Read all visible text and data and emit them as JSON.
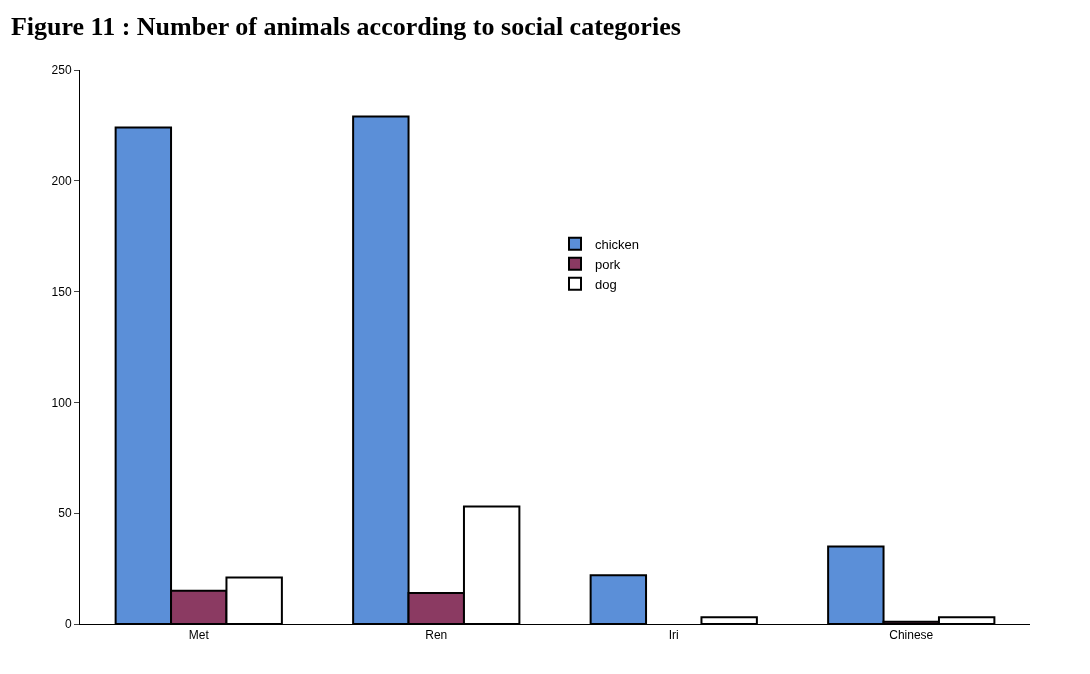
{
  "chart_data": {
    "type": "bar",
    "title": "Figure 11 : Number of animals according to social categories",
    "categories": [
      "Met",
      "Ren",
      "Iri",
      "Chinese"
    ],
    "series": [
      {
        "name": "chicken",
        "color": "#5b8fd8",
        "values": [
          224,
          229,
          22,
          35
        ]
      },
      {
        "name": "pork",
        "color": "#8b3a62",
        "values": [
          15,
          14,
          0,
          1
        ]
      },
      {
        "name": "dog",
        "color": "#ffffff",
        "values": [
          21,
          53,
          3,
          3
        ]
      }
    ],
    "ylim": [
      0,
      250
    ],
    "yticks": [
      0,
      50,
      100,
      150,
      200,
      250
    ],
    "legend": "center"
  }
}
